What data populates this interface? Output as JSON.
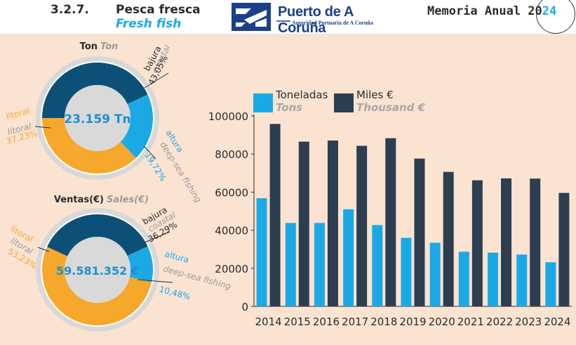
{
  "header": {
    "section_number": "3.2.7.",
    "title": "Pesca fresca",
    "title_en": "Fresh fish",
    "logo_name": "Puerto de A Coruña",
    "logo_sub": "Autoridad Portuaria de A Coruña",
    "report_title": "Memoria Anual 20",
    "report_year_suffix": "24",
    "colors": {
      "accent": "#1ba9e6",
      "dark": "#2b2b2b",
      "brand": "#1d3f8a"
    }
  },
  "chart_data": [
    {
      "type": "pie",
      "title": "Ton",
      "title_en": "Ton",
      "center_label": "23.159 Tn",
      "slices": [
        {
          "name": "bajura",
          "name_en": "coastal",
          "pct_label": "43,05%",
          "value": 43.05,
          "color": "#0d5077"
        },
        {
          "name": "altura",
          "name_en": "deep-sea fishing",
          "pct_label": "19,72%",
          "value": 19.72,
          "color": "#1ba9e6"
        },
        {
          "name": "litoral",
          "name_en": "litoral",
          "pct_label": "37,23%",
          "value": 37.23,
          "color": "#f5a82b"
        }
      ]
    },
    {
      "type": "pie",
      "title": "Ventas(€)",
      "title_en": "Sales(€)",
      "center_label": "59.581.352 €",
      "slices": [
        {
          "name": "bajura",
          "name_en": "coastal",
          "pct_label": "36,29%",
          "value": 36.29,
          "color": "#0d5077"
        },
        {
          "name": "altura",
          "name_en": "deep-sea fishing",
          "pct_label": "10,48%",
          "value": 10.48,
          "color": "#1ba9e6"
        },
        {
          "name": "litoral",
          "name_en": "litoral",
          "pct_label": "53,23%",
          "value": 53.23,
          "color": "#f5a82b"
        }
      ]
    },
    {
      "type": "bar",
      "categories": [
        "2014",
        "2015",
        "2016",
        "2017",
        "2018",
        "2019",
        "2020",
        "2021",
        "2022",
        "2023",
        "2024"
      ],
      "series": [
        {
          "name": "Toneladas",
          "name_en": "Tons",
          "color": "#1ba9e6",
          "values": [
            56800,
            43800,
            43800,
            51000,
            42700,
            36000,
            33400,
            28700,
            28200,
            27200,
            23159
          ]
        },
        {
          "name": "Miles €",
          "name_en": "Thousand €",
          "color": "#2c3e50",
          "values": [
            95800,
            86500,
            87100,
            84300,
            88300,
            77600,
            70600,
            66200,
            67200,
            67100,
            59581
          ]
        }
      ],
      "ylim": [
        0,
        100000
      ],
      "yticks": [
        0,
        20000,
        40000,
        60000,
        80000,
        100000
      ],
      "grid": false,
      "legend": "top"
    }
  ]
}
